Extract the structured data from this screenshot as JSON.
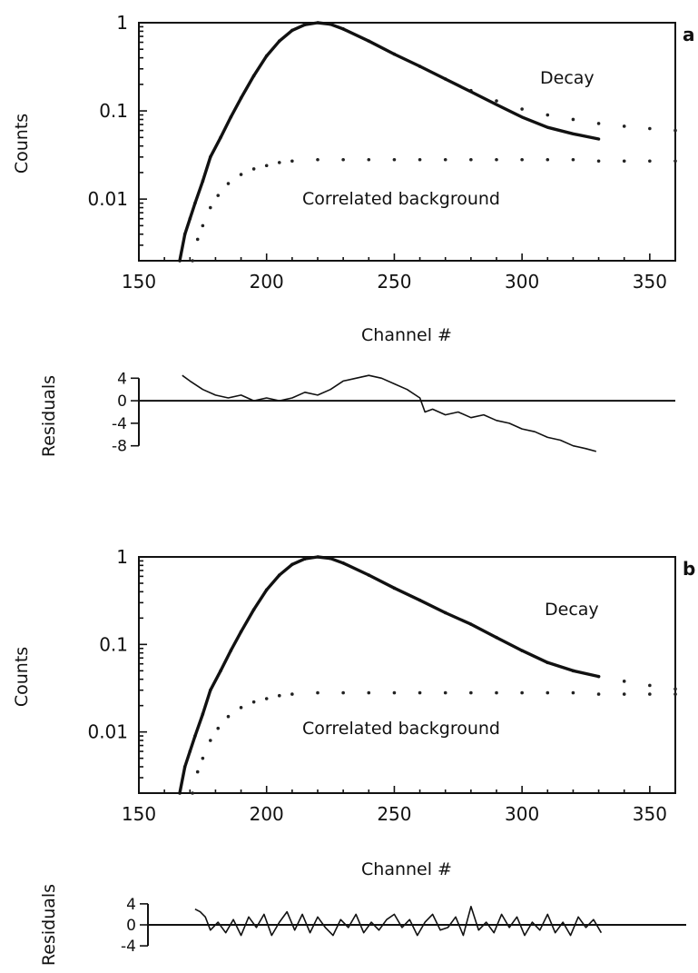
{
  "chart_data": [
    {
      "type": "scatter",
      "panel_label": "a",
      "ylabel": "Counts",
      "xlabel": "Channel #",
      "xlim": [
        150,
        360
      ],
      "ylim": [
        0.002,
        1
      ],
      "y_scale": "log",
      "x_ticks": [
        150,
        200,
        250,
        300,
        350
      ],
      "x_tick_labels": [
        "150",
        "200",
        "250",
        "300",
        "350"
      ],
      "y_ticks": [
        0.01,
        0.1,
        1
      ],
      "y_tick_labels": [
        "0.01",
        "0.1",
        "1"
      ],
      "annotations": [
        "Decay",
        "Correlated background"
      ],
      "series": [
        {
          "role": "decay-data",
          "style": "points",
          "x": [
            166,
            168,
            170,
            172,
            175,
            178,
            182,
            186,
            190,
            195,
            200,
            205,
            210,
            215,
            220,
            225,
            230,
            240,
            250,
            260,
            270,
            280,
            290,
            300,
            310,
            320,
            330,
            340,
            350,
            360
          ],
          "y": [
            0.002,
            0.004,
            0.006,
            0.009,
            0.016,
            0.03,
            0.05,
            0.085,
            0.14,
            0.25,
            0.42,
            0.62,
            0.82,
            0.95,
            1.0,
            0.96,
            0.85,
            0.62,
            0.44,
            0.32,
            0.23,
            0.17,
            0.13,
            0.105,
            0.09,
            0.08,
            0.072,
            0.067,
            0.063,
            0.06
          ]
        },
        {
          "role": "fit",
          "style": "line",
          "x": [
            166,
            168,
            170,
            172,
            175,
            178,
            182,
            186,
            190,
            195,
            200,
            205,
            210,
            215,
            220,
            225,
            230,
            240,
            250,
            260,
            270,
            280,
            290,
            300,
            310,
            320,
            330
          ],
          "y": [
            0.002,
            0.004,
            0.006,
            0.009,
            0.016,
            0.03,
            0.05,
            0.085,
            0.14,
            0.25,
            0.42,
            0.62,
            0.82,
            0.95,
            1.0,
            0.96,
            0.85,
            0.62,
            0.44,
            0.32,
            0.23,
            0.165,
            0.118,
            0.085,
            0.065,
            0.055,
            0.048
          ]
        },
        {
          "role": "correlated-background",
          "style": "points",
          "x": [
            171,
            173,
            175,
            178,
            181,
            185,
            190,
            195,
            200,
            205,
            210,
            220,
            230,
            240,
            250,
            260,
            270,
            280,
            290,
            300,
            310,
            320,
            330,
            340,
            350,
            360
          ],
          "y": [
            0.002,
            0.0035,
            0.005,
            0.008,
            0.011,
            0.015,
            0.019,
            0.022,
            0.024,
            0.026,
            0.027,
            0.028,
            0.028,
            0.028,
            0.028,
            0.028,
            0.028,
            0.028,
            0.028,
            0.028,
            0.028,
            0.028,
            0.027,
            0.027,
            0.027,
            0.027
          ]
        }
      ],
      "residuals": {
        "ylabel": "Residuals",
        "ylim": [
          -9.5,
          5.5
        ],
        "y_ticks": [
          4,
          0,
          -4,
          -8
        ],
        "y_tick_labels": [
          "4",
          "0",
          "-4",
          "-8"
        ],
        "x": [
          167,
          170,
          175,
          180,
          185,
          190,
          195,
          200,
          205,
          210,
          215,
          220,
          225,
          230,
          235,
          240,
          245,
          250,
          255,
          260,
          262,
          265,
          270,
          275,
          280,
          285,
          290,
          295,
          300,
          305,
          310,
          315,
          320,
          325,
          329
        ],
        "y": [
          4.5,
          3.5,
          2.0,
          1.0,
          0.5,
          1.0,
          0.0,
          0.5,
          0.0,
          0.5,
          1.5,
          1.0,
          2.0,
          3.5,
          4.0,
          4.5,
          4.0,
          3.0,
          2.0,
          0.5,
          -2.0,
          -1.5,
          -2.5,
          -2.0,
          -3.0,
          -2.5,
          -3.5,
          -4.0,
          -5.0,
          -5.5,
          -6.5,
          -7.0,
          -8.0,
          -8.5,
          -9.0
        ]
      }
    },
    {
      "type": "scatter",
      "panel_label": "b",
      "ylabel": "Counts",
      "xlabel": "Channel #",
      "xlim": [
        150,
        360
      ],
      "ylim": [
        0.002,
        1
      ],
      "y_scale": "log",
      "x_ticks": [
        150,
        200,
        250,
        300,
        350
      ],
      "x_tick_labels": [
        "150",
        "200",
        "250",
        "300",
        "350"
      ],
      "y_ticks": [
        0.01,
        0.1,
        1
      ],
      "y_tick_labels": [
        "0.01",
        "0.1",
        "1"
      ],
      "annotations": [
        "Decay",
        "Correlated background"
      ],
      "series": [
        {
          "role": "decay-data",
          "style": "points",
          "x": [
            166,
            168,
            170,
            172,
            175,
            178,
            182,
            186,
            190,
            195,
            200,
            205,
            210,
            215,
            220,
            225,
            230,
            240,
            250,
            260,
            270,
            280,
            290,
            300,
            310,
            320,
            330,
            340,
            350,
            360
          ],
          "y": [
            0.002,
            0.004,
            0.006,
            0.009,
            0.016,
            0.03,
            0.05,
            0.085,
            0.14,
            0.25,
            0.42,
            0.62,
            0.82,
            0.95,
            1.0,
            0.96,
            0.85,
            0.62,
            0.44,
            0.32,
            0.23,
            0.17,
            0.12,
            0.085,
            0.062,
            0.05,
            0.043,
            0.038,
            0.034,
            0.031
          ]
        },
        {
          "role": "fit",
          "style": "line",
          "x": [
            166,
            168,
            170,
            172,
            175,
            178,
            182,
            186,
            190,
            195,
            200,
            205,
            210,
            215,
            220,
            225,
            230,
            240,
            250,
            260,
            270,
            280,
            290,
            300,
            310,
            320,
            330
          ],
          "y": [
            0.002,
            0.004,
            0.006,
            0.009,
            0.016,
            0.03,
            0.05,
            0.085,
            0.14,
            0.25,
            0.42,
            0.62,
            0.82,
            0.95,
            1.0,
            0.96,
            0.85,
            0.62,
            0.44,
            0.32,
            0.23,
            0.17,
            0.12,
            0.085,
            0.062,
            0.05,
            0.043
          ]
        },
        {
          "role": "correlated-background",
          "style": "points",
          "x": [
            171,
            173,
            175,
            178,
            181,
            185,
            190,
            195,
            200,
            205,
            210,
            220,
            230,
            240,
            250,
            260,
            270,
            280,
            290,
            300,
            310,
            320,
            330,
            340,
            350,
            360
          ],
          "y": [
            0.002,
            0.0035,
            0.005,
            0.008,
            0.011,
            0.015,
            0.019,
            0.022,
            0.024,
            0.026,
            0.027,
            0.028,
            0.028,
            0.028,
            0.028,
            0.028,
            0.028,
            0.028,
            0.028,
            0.028,
            0.028,
            0.028,
            0.027,
            0.027,
            0.027,
            0.027
          ]
        }
      ],
      "residuals": {
        "ylabel": "Residuals",
        "ylim": [
          -4.5,
          4.5
        ],
        "y_ticks": [
          4,
          0,
          -4
        ],
        "y_tick_labels": [
          "4",
          "0",
          "-4"
        ],
        "x": [
          172,
          174,
          176,
          178,
          181,
          184,
          187,
          190,
          193,
          196,
          199,
          202,
          205,
          208,
          211,
          214,
          217,
          220,
          223,
          226,
          229,
          232,
          235,
          238,
          241,
          244,
          247,
          250,
          253,
          256,
          259,
          262,
          265,
          268,
          271,
          274,
          277,
          280,
          283,
          286,
          289,
          292,
          295,
          298,
          301,
          304,
          307,
          310,
          313,
          316,
          319,
          322,
          325,
          328,
          331
        ],
        "y": [
          3.0,
          2.5,
          1.5,
          -1.0,
          0.5,
          -1.5,
          1.0,
          -2.0,
          1.5,
          -0.5,
          2.0,
          -2.0,
          0.5,
          2.5,
          -1.0,
          2.0,
          -1.5,
          1.5,
          -0.5,
          -2.0,
          1.0,
          -0.5,
          2.0,
          -1.5,
          0.5,
          -1.0,
          1.0,
          2.0,
          -0.5,
          1.0,
          -2.0,
          0.5,
          2.0,
          -1.0,
          -0.5,
          1.5,
          -2.0,
          3.5,
          -1.0,
          0.5,
          -1.5,
          2.0,
          -0.5,
          1.5,
          -2.0,
          0.5,
          -1.0,
          2.0,
          -1.5,
          0.5,
          -2.0,
          1.5,
          -0.5,
          1.0,
          -1.5
        ]
      }
    }
  ]
}
